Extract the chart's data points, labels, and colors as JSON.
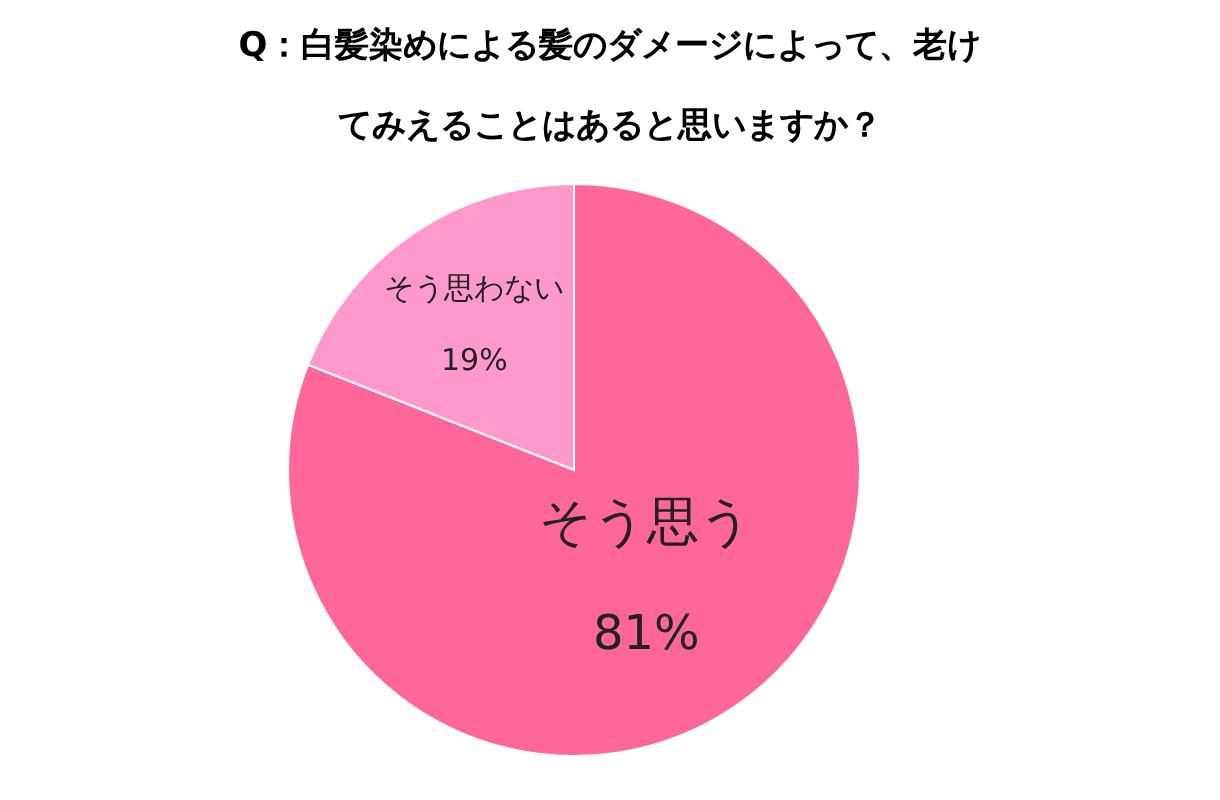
{
  "chart_data": {
    "type": "pie",
    "title": "Q：白髪染めによる髪のダメージによって、老けてみえることはあると思いますか？",
    "categories": [
      "そう思う",
      "そう思わない"
    ],
    "values": [
      81,
      19
    ],
    "colors": [
      "#ff6699",
      "#ff99cc"
    ],
    "value_labels": [
      "81%",
      "19%"
    ]
  }
}
